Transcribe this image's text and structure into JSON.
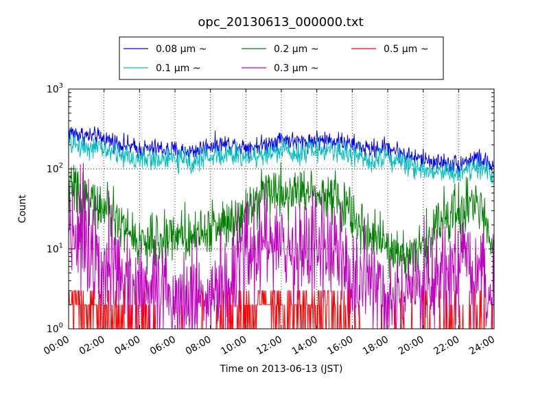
{
  "chart_data": {
    "type": "line",
    "title": "opc_20130613_000000.txt",
    "xlabel": "Time on 2013-06-13 (JST)",
    "ylabel": "Count",
    "y_scale": "log",
    "ylim": [
      1,
      1000
    ],
    "xlim": [
      "00:00",
      "24:00"
    ],
    "grid": true,
    "legend_position": "top-center",
    "x_ticks": [
      "00:00",
      "02:00",
      "04:00",
      "06:00",
      "08:00",
      "10:00",
      "12:00",
      "14:00",
      "16:00",
      "18:00",
      "20:00",
      "22:00",
      "24:00"
    ],
    "y_ticks": [
      {
        "base": "10",
        "exp": "0"
      },
      {
        "base": "10",
        "exp": "1"
      },
      {
        "base": "10",
        "exp": "2"
      },
      {
        "base": "10",
        "exp": "3"
      }
    ],
    "x_hours": [
      0,
      1,
      2,
      3,
      4,
      5,
      6,
      7,
      8,
      9,
      10,
      11,
      12,
      13,
      14,
      15,
      16,
      17,
      18,
      19,
      20,
      21,
      22,
      23,
      24
    ],
    "series": [
      {
        "name": "0.08 μm ~",
        "color": "#0000ff",
        "values": [
          290,
          260,
          240,
          205,
          175,
          180,
          170,
          165,
          200,
          205,
          190,
          200,
          240,
          215,
          230,
          230,
          200,
          175,
          190,
          150,
          130,
          120,
          115,
          140,
          105
        ]
      },
      {
        "name": "0.1 μm ~",
        "color": "#00bfbf",
        "values": [
          210,
          190,
          175,
          150,
          130,
          135,
          130,
          125,
          145,
          150,
          140,
          150,
          175,
          160,
          175,
          175,
          150,
          130,
          145,
          115,
          100,
          95,
          90,
          110,
          80
        ]
      },
      {
        "name": "0.2 μm ~",
        "color": "#008000",
        "values": [
          60,
          45,
          30,
          20,
          12,
          12,
          16,
          15,
          18,
          22,
          32,
          55,
          50,
          50,
          55,
          45,
          25,
          15,
          10,
          8,
          10,
          25,
          30,
          35,
          15
        ]
      },
      {
        "name": "0.3 μm ~",
        "color": "#bf00bf",
        "values": [
          20,
          15,
          8,
          4,
          3,
          3,
          2.5,
          3,
          2.5,
          3,
          8,
          15,
          8,
          10,
          12,
          8,
          4,
          3,
          2,
          2,
          3,
          4,
          5,
          4,
          3
        ]
      },
      {
        "name": "0.5 μm ~",
        "color": "#ff0000",
        "values": [
          2,
          1.6,
          1.4,
          1.3,
          1.2,
          1.1,
          1.1,
          1.05,
          1.05,
          1.2,
          1.5,
          2,
          1.5,
          1.5,
          1.7,
          1.4,
          1.2,
          1.1,
          1.05,
          1.05,
          1.1,
          1.2,
          1.3,
          1.3,
          1.2
        ]
      }
    ]
  }
}
